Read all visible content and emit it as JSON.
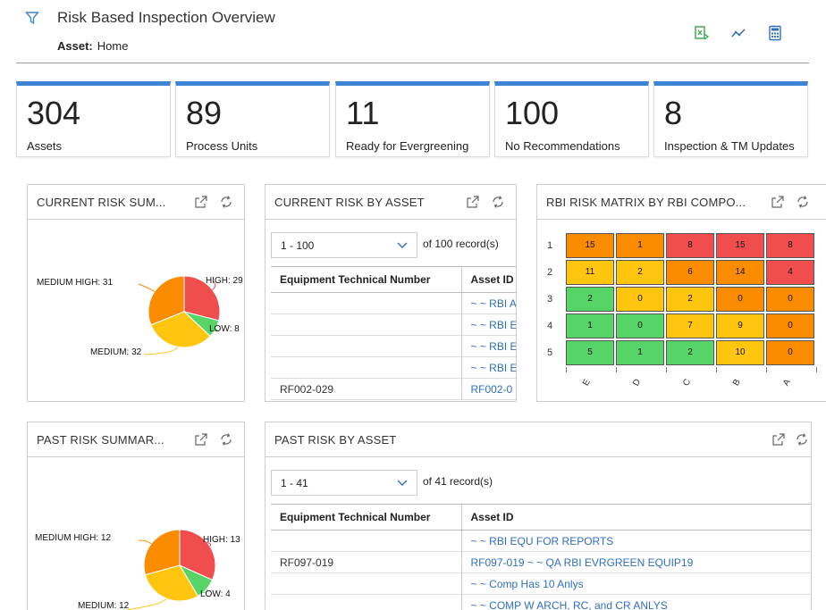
{
  "header": {
    "title": "Risk Based Inspection Overview",
    "asset_label": "Asset:",
    "asset_value": "Home"
  },
  "kpis": [
    {
      "value": "304",
      "label": "Assets"
    },
    {
      "value": "89",
      "label": "Process Units"
    },
    {
      "value": "11",
      "label": "Ready for Evergreening"
    },
    {
      "value": "100",
      "label": "No Recommendations"
    },
    {
      "value": "8",
      "label": "Inspection & TM Updates"
    }
  ],
  "current_risk_summary": {
    "title": "CURRENT RISK SUM...",
    "slices": [
      {
        "label": "HIGH: 29",
        "value": 29,
        "color": "#f04e4e"
      },
      {
        "label": "LOW: 8",
        "value": 8,
        "color": "#57d468"
      },
      {
        "label": "MEDIUM: 32",
        "value": 32,
        "color": "#ffc50f"
      },
      {
        "label": "MEDIUM HIGH: 31",
        "value": 31,
        "color": "#fb8c00"
      }
    ]
  },
  "current_risk_by_asset": {
    "title": "CURRENT RISK BY ASSET",
    "pager": "1 - 100",
    "of_records": "of 100 record(s)",
    "columns": [
      "Equipment Technical Number",
      "Asset ID"
    ],
    "rows": [
      [
        "",
        "~ ~ RBI A"
      ],
      [
        "",
        "~ ~ RBI E"
      ],
      [
        "",
        "~ ~ RBI E"
      ],
      [
        "",
        "~ ~ RBI E"
      ],
      [
        "RF002-029",
        "RF002-0"
      ]
    ]
  },
  "rbi_matrix": {
    "title": "RBI RISK MATRIX BY RBI COMPO...",
    "row_labels": [
      "1",
      "2",
      "3",
      "4",
      "5"
    ],
    "col_labels": [
      "E",
      "D",
      "C",
      "B",
      "A"
    ],
    "cells": [
      [
        {
          "v": "15",
          "c": "#fb8c00"
        },
        {
          "v": "1",
          "c": "#fb8c00"
        },
        {
          "v": "8",
          "c": "#f04e4e"
        },
        {
          "v": "15",
          "c": "#f04e4e"
        },
        {
          "v": "8",
          "c": "#f04e4e"
        }
      ],
      [
        {
          "v": "11",
          "c": "#ffc50f"
        },
        {
          "v": "2",
          "c": "#ffc50f"
        },
        {
          "v": "6",
          "c": "#fb8c00"
        },
        {
          "v": "14",
          "c": "#fb8c00"
        },
        {
          "v": "4",
          "c": "#f04e4e"
        }
      ],
      [
        {
          "v": "2",
          "c": "#57d468"
        },
        {
          "v": "0",
          "c": "#ffc50f"
        },
        {
          "v": "2",
          "c": "#ffc50f"
        },
        {
          "v": "0",
          "c": "#fb8c00"
        },
        {
          "v": "0",
          "c": "#fb8c00"
        }
      ],
      [
        {
          "v": "1",
          "c": "#57d468"
        },
        {
          "v": "0",
          "c": "#57d468"
        },
        {
          "v": "7",
          "c": "#ffc50f"
        },
        {
          "v": "9",
          "c": "#ffc50f"
        },
        {
          "v": "0",
          "c": "#fb8c00"
        }
      ],
      [
        {
          "v": "5",
          "c": "#57d468"
        },
        {
          "v": "1",
          "c": "#57d468"
        },
        {
          "v": "2",
          "c": "#57d468"
        },
        {
          "v": "10",
          "c": "#ffc50f"
        },
        {
          "v": "0",
          "c": "#fb8c00"
        }
      ]
    ]
  },
  "past_risk_summary": {
    "title": "PAST RISK SUMMAR...",
    "slices": [
      {
        "label": "HIGH: 13",
        "value": 13,
        "color": "#f04e4e"
      },
      {
        "label": "LOW: 4",
        "value": 4,
        "color": "#57d468"
      },
      {
        "label": "MEDIUM: 12",
        "value": 12,
        "color": "#ffc50f"
      },
      {
        "label": "MEDIUM HIGH: 12",
        "value": 12,
        "color": "#fb8c00"
      }
    ]
  },
  "past_risk_by_asset": {
    "title": "PAST RISK BY ASSET",
    "pager": "1 - 41",
    "of_records": "of 41 record(s)",
    "columns": [
      "Equipment Technical Number",
      "Asset ID"
    ],
    "rows": [
      [
        "",
        "~ ~ RBI EQU FOR REPORTS"
      ],
      [
        "RF097-019",
        "RF097-019 ~ ~ QA RBI EVRGREEN EQUIP19"
      ],
      [
        "",
        "~ ~ Comp Has 10 Anlys"
      ],
      [
        "",
        "~ ~ COMP W ARCH, RC, and CR ANLYS"
      ]
    ]
  },
  "icons": {
    "filter": "filter-icon",
    "export": "export-icon",
    "trend": "trend-icon",
    "calculator": "calculator-icon",
    "expand": "expand-icon",
    "refresh": "refresh-icon"
  }
}
